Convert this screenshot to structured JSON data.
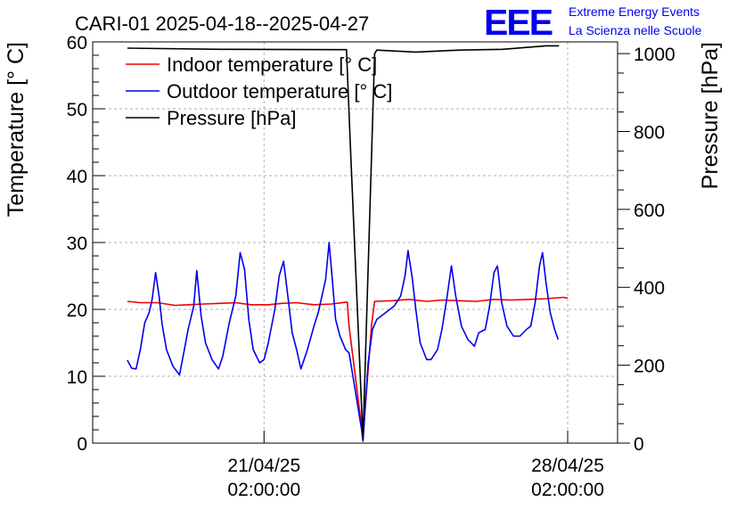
{
  "chart_data": {
    "type": "line",
    "title": "CARI-01 2025-04-18--2025-04-27",
    "ylabel": "Temperature [° C]",
    "y2label": "Pressure [hPa]",
    "ylim": [
      0,
      60
    ],
    "y2lim": [
      0,
      1030
    ],
    "xlim": [
      -3.95,
      8.15
    ],
    "yticks": [
      0,
      10,
      20,
      30,
      40,
      50,
      60
    ],
    "y2ticks": [
      0,
      200,
      400,
      600,
      800,
      1000
    ],
    "xticks": [
      {
        "x": 0,
        "date": "21/04/25",
        "time": "02:00:00"
      },
      {
        "x": 7,
        "date": "28/04/25",
        "time": "02:00:00"
      }
    ],
    "grid": true,
    "legend_position": "top-left",
    "logo": {
      "text": "EEE",
      "line1": "Extreme Energy Events",
      "line2": "La Scienza nelle Scuole"
    },
    "series": [
      {
        "name": "Indoor temperature [° C]",
        "color": "#ee0000",
        "axis": "left",
        "points": [
          [
            -3.15,
            21.2
          ],
          [
            -2.85,
            21.0
          ],
          [
            -2.45,
            21.0
          ],
          [
            -2.05,
            20.6
          ],
          [
            -1.75,
            20.7
          ],
          [
            -1.4,
            20.8
          ],
          [
            -1.05,
            20.9
          ],
          [
            -0.65,
            21.0
          ],
          [
            -0.3,
            20.7
          ],
          [
            0.1,
            20.7
          ],
          [
            0.4,
            20.9
          ],
          [
            0.75,
            21.0
          ],
          [
            1.15,
            20.7
          ],
          [
            1.55,
            20.8
          ],
          [
            1.92,
            21.1
          ],
          [
            1.96,
            17.5
          ],
          [
            2.28,
            0.8
          ],
          [
            2.48,
            17.8
          ],
          [
            2.55,
            21.2
          ],
          [
            2.95,
            21.3
          ],
          [
            3.35,
            21.5
          ],
          [
            3.75,
            21.2
          ],
          [
            4.1,
            21.4
          ],
          [
            4.5,
            21.3
          ],
          [
            4.9,
            21.2
          ],
          [
            5.3,
            21.5
          ],
          [
            5.7,
            21.4
          ],
          [
            6.1,
            21.5
          ],
          [
            6.5,
            21.6
          ],
          [
            6.9,
            21.8
          ],
          [
            7.0,
            21.7
          ]
        ]
      },
      {
        "name": "Outdoor temperature [° C]",
        "color": "#0000ee",
        "axis": "left",
        "points": [
          [
            -3.15,
            12.4
          ],
          [
            -3.05,
            11.2
          ],
          [
            -2.95,
            11.1
          ],
          [
            -2.85,
            14.0
          ],
          [
            -2.75,
            18.0
          ],
          [
            -2.65,
            19.5
          ],
          [
            -2.58,
            21.5
          ],
          [
            -2.5,
            25.5
          ],
          [
            -2.42,
            22.0
          ],
          [
            -2.35,
            17.8
          ],
          [
            -2.25,
            14.0
          ],
          [
            -2.1,
            11.5
          ],
          [
            -1.95,
            10.2
          ],
          [
            -1.85,
            13.5
          ],
          [
            -1.75,
            17.0
          ],
          [
            -1.62,
            20.5
          ],
          [
            -1.55,
            25.8
          ],
          [
            -1.45,
            19.0
          ],
          [
            -1.35,
            15.0
          ],
          [
            -1.2,
            12.5
          ],
          [
            -1.05,
            11.1
          ],
          [
            -0.95,
            13.0
          ],
          [
            -0.8,
            18.0
          ],
          [
            -0.65,
            22.0
          ],
          [
            -0.55,
            28.5
          ],
          [
            -0.45,
            26.0
          ],
          [
            -0.35,
            18.5
          ],
          [
            -0.25,
            14.0
          ],
          [
            -0.1,
            12.0
          ],
          [
            0.0,
            12.5
          ],
          [
            0.1,
            15.0
          ],
          [
            0.25,
            20.0
          ],
          [
            0.35,
            25.0
          ],
          [
            0.45,
            27.2
          ],
          [
            0.55,
            22.0
          ],
          [
            0.65,
            16.5
          ],
          [
            0.75,
            14.0
          ],
          [
            0.85,
            11.1
          ],
          [
            1.0,
            14.0
          ],
          [
            1.15,
            17.5
          ],
          [
            1.25,
            19.5
          ],
          [
            1.3,
            21.0
          ],
          [
            1.42,
            24.5
          ],
          [
            1.5,
            30.0
          ],
          [
            1.58,
            24.0
          ],
          [
            1.65,
            18.5
          ],
          [
            1.75,
            16.0
          ],
          [
            1.88,
            14.0
          ],
          [
            1.96,
            13.5
          ],
          [
            2.1,
            8.0
          ],
          [
            2.25,
            2.0
          ],
          [
            2.28,
            0.3
          ],
          [
            2.4,
            12.0
          ],
          [
            2.5,
            17.0
          ],
          [
            2.6,
            18.5
          ],
          [
            2.8,
            19.5
          ],
          [
            3.0,
            20.5
          ],
          [
            3.15,
            22.0
          ],
          [
            3.25,
            25.0
          ],
          [
            3.32,
            28.8
          ],
          [
            3.42,
            24.5
          ],
          [
            3.5,
            20.0
          ],
          [
            3.6,
            15.0
          ],
          [
            3.75,
            12.5
          ],
          [
            3.85,
            12.5
          ],
          [
            4.0,
            14.0
          ],
          [
            4.1,
            17.0
          ],
          [
            4.2,
            21.0
          ],
          [
            4.32,
            26.5
          ],
          [
            4.42,
            22.0
          ],
          [
            4.55,
            17.5
          ],
          [
            4.7,
            15.5
          ],
          [
            4.85,
            14.5
          ],
          [
            4.95,
            16.5
          ],
          [
            5.1,
            17.0
          ],
          [
            5.2,
            20.5
          ],
          [
            5.3,
            25.5
          ],
          [
            5.38,
            26.5
          ],
          [
            5.48,
            21.0
          ],
          [
            5.6,
            17.5
          ],
          [
            5.75,
            16.0
          ],
          [
            5.9,
            16.0
          ],
          [
            6.05,
            17.0
          ],
          [
            6.15,
            17.5
          ],
          [
            6.25,
            21.0
          ],
          [
            6.35,
            26.5
          ],
          [
            6.42,
            28.5
          ],
          [
            6.5,
            24.0
          ],
          [
            6.6,
            19.5
          ],
          [
            6.7,
            17.0
          ],
          [
            6.78,
            15.5
          ]
        ]
      },
      {
        "name": "Pressure [hPa]",
        "color": "#000000",
        "axis": "right",
        "points": [
          [
            -3.15,
            1014
          ],
          [
            -1.0,
            1011
          ],
          [
            1.9,
            1010
          ],
          [
            2.0,
            740
          ],
          [
            2.28,
            10
          ],
          [
            2.55,
            1000
          ],
          [
            2.6,
            1009
          ],
          [
            3.5,
            1004
          ],
          [
            4.5,
            1009
          ],
          [
            5.5,
            1011
          ],
          [
            6.5,
            1020
          ],
          [
            6.8,
            1020
          ]
        ]
      }
    ]
  }
}
